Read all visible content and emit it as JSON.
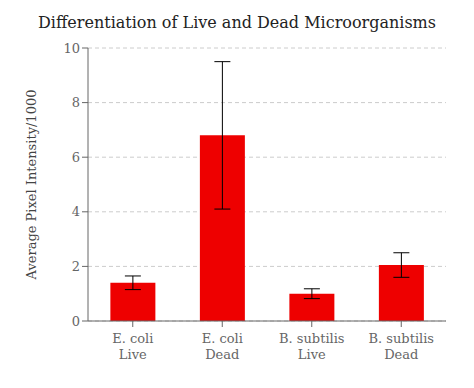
{
  "chart_data": {
    "type": "bar",
    "title": "Differentiation of Live and Dead Microorganisms",
    "categories": [
      "E. coli\nLive",
      "E. coli\nDead",
      "B. subtilis\nLive",
      "B. subtilis\nDead"
    ],
    "values": [
      1.4,
      6.8,
      1.0,
      2.05
    ],
    "errors": [
      0.25,
      2.7,
      0.18,
      0.45
    ],
    "color": "#ee0000",
    "ylabel": "Average Pixel Intensity/1000",
    "ylim": [
      0,
      10
    ],
    "yticks": [
      0,
      2,
      4,
      6,
      8,
      10
    ],
    "grid": true
  }
}
